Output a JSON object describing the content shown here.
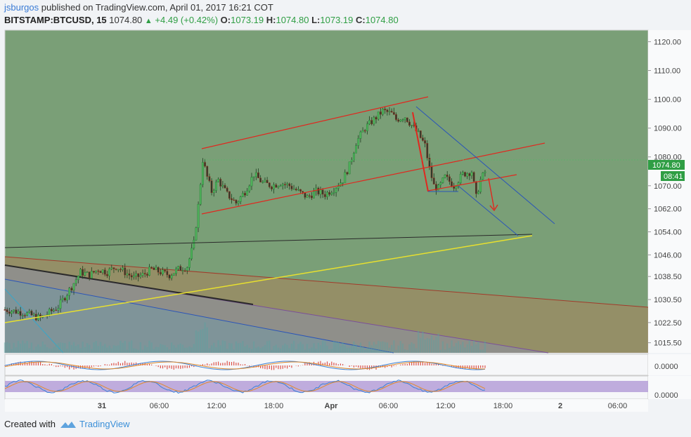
{
  "header": {
    "author": "jsburgos",
    "published_text": "published on TradingView.com, April 01, 2017 16:21 COT",
    "symbol": "BITSTAMP:BTCUSD, 15",
    "last": "1074.80",
    "change": "+4.49 (+0.42%)",
    "o_label": "O:",
    "o_value": "1073.19",
    "h_label": "H:",
    "h_value": "1074.80",
    "l_label": "L:",
    "l_value": "1073.19",
    "c_label": "C:",
    "c_value": "1074.80"
  },
  "footer": {
    "created_with": "Created with",
    "brand": "TradingView"
  },
  "colors": {
    "pane_bg": "#7a9f77",
    "up": "#2f9e44",
    "down": "#d9352b",
    "price_tag": "#2f9e44",
    "channel": "#e0281f",
    "wedge": "#2b55b8",
    "support": "#e8e02e",
    "neckline": "#2a2a2a"
  },
  "chart_data": {
    "type": "candlestick",
    "title": "",
    "y_ticks": [
      "1120.00",
      "1110.00",
      "1100.00",
      "1090.00",
      "1080.00",
      "1070.00",
      "1062.00",
      "1054.00",
      "1046.00",
      "1038.50",
      "1030.50",
      "1022.50",
      "1015.50"
    ],
    "x_ticks": [
      "31",
      "06:00",
      "12:00",
      "18:00",
      "Apr",
      "06:00",
      "12:00",
      "18:00",
      "2",
      "06:00"
    ],
    "last_price_label": "1074.80",
    "countdown_label": "08:41",
    "oscillator_label": "0.0000",
    "stoch_label": "0.0000",
    "ylim": [
      1012,
      1124
    ],
    "price_path": [
      [
        0,
        1027
      ],
      [
        8,
        1026
      ],
      [
        16,
        1024
      ],
      [
        24,
        1028
      ],
      [
        30,
        1035
      ],
      [
        34,
        1040
      ],
      [
        38,
        1039
      ],
      [
        42,
        1041
      ],
      [
        46,
        1040
      ],
      [
        50,
        1042
      ],
      [
        54,
        1040
      ],
      [
        58,
        1038
      ],
      [
        62,
        1039
      ],
      [
        66,
        1041
      ],
      [
        70,
        1040
      ],
      [
        74,
        1039
      ],
      [
        78,
        1041
      ],
      [
        82,
        1042
      ],
      [
        85,
        1050
      ],
      [
        87,
        1063
      ],
      [
        89,
        1079
      ],
      [
        91,
        1073
      ],
      [
        93,
        1068
      ],
      [
        96,
        1072
      ],
      [
        100,
        1067
      ],
      [
        104,
        1064
      ],
      [
        108,
        1068
      ],
      [
        112,
        1074
      ],
      [
        116,
        1071
      ],
      [
        120,
        1070
      ],
      [
        124,
        1071
      ],
      [
        128,
        1070
      ],
      [
        132,
        1068
      ],
      [
        136,
        1066
      ],
      [
        140,
        1068
      ],
      [
        144,
        1067
      ],
      [
        148,
        1069
      ],
      [
        152,
        1072
      ],
      [
        155,
        1077
      ],
      [
        158,
        1085
      ],
      [
        162,
        1090
      ],
      [
        166,
        1093
      ],
      [
        170,
        1096
      ],
      [
        174,
        1095
      ],
      [
        176,
        1093
      ],
      [
        180,
        1094
      ],
      [
        183,
        1091
      ],
      [
        186,
        1088
      ],
      [
        189,
        1084
      ],
      [
        191,
        1076
      ],
      [
        193,
        1070
      ],
      [
        195,
        1069
      ],
      [
        198,
        1073
      ],
      [
        202,
        1070
      ],
      [
        206,
        1074
      ],
      [
        210,
        1075
      ],
      [
        212,
        1066
      ],
      [
        214,
        1072
      ],
      [
        216,
        1074.8
      ]
    ],
    "annotations": [
      "ascending-channel",
      "falling-wedge",
      "support-line",
      "neckline",
      "down-arrow"
    ]
  }
}
